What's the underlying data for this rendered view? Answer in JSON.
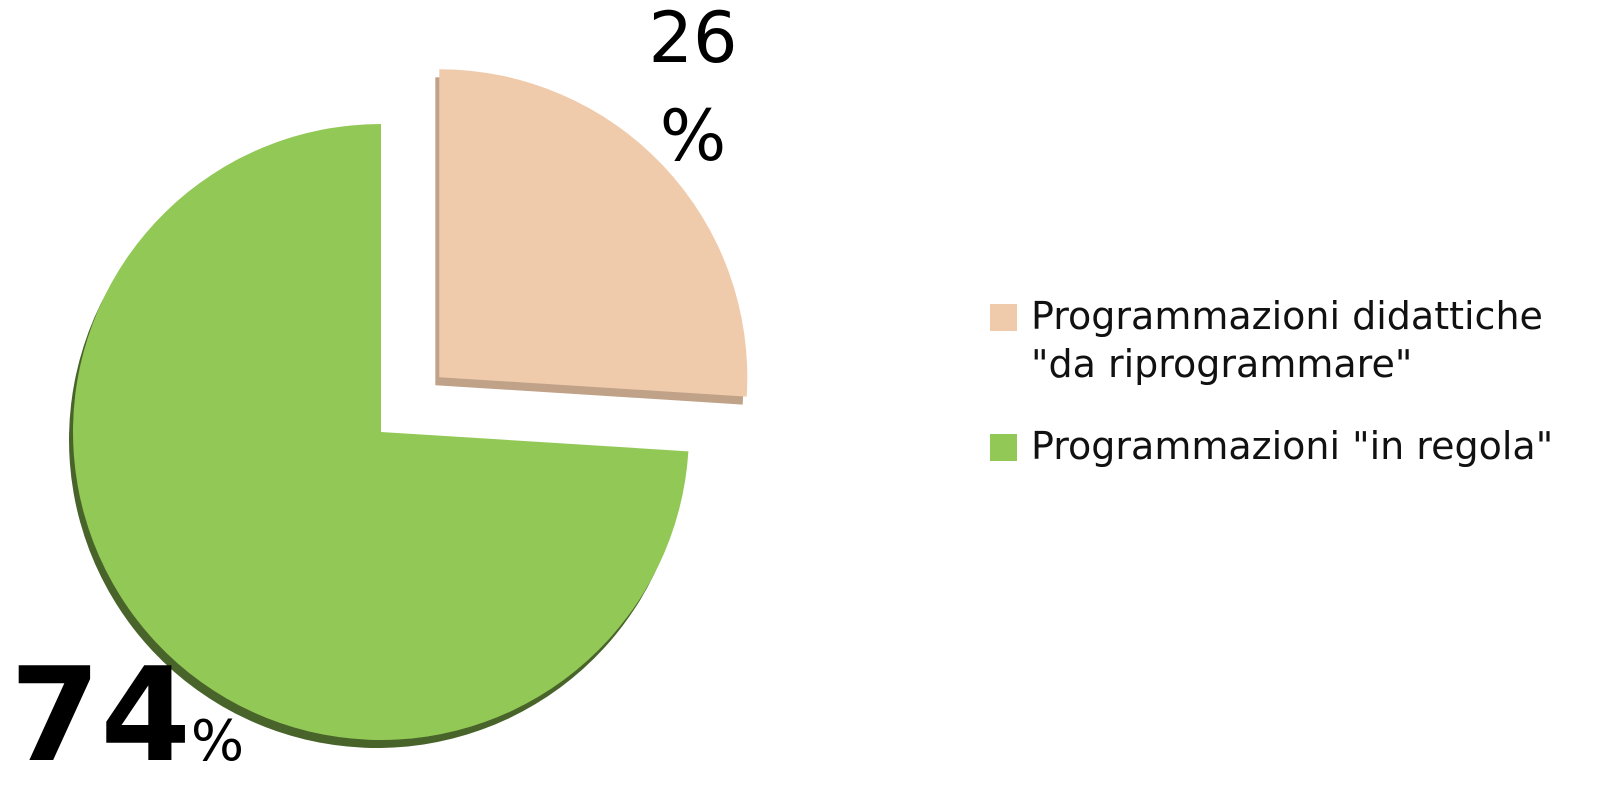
{
  "chart_data": {
    "type": "pie",
    "categories": [
      "Programmazioni didattiche \"da riprogrammare\"",
      "Programmazioni \"in regola\""
    ],
    "values": [
      26,
      74
    ],
    "value_labels": [
      "26%",
      "74%"
    ],
    "colors": [
      "#f0cbab",
      "#92c855"
    ],
    "legend": "right"
  }
}
